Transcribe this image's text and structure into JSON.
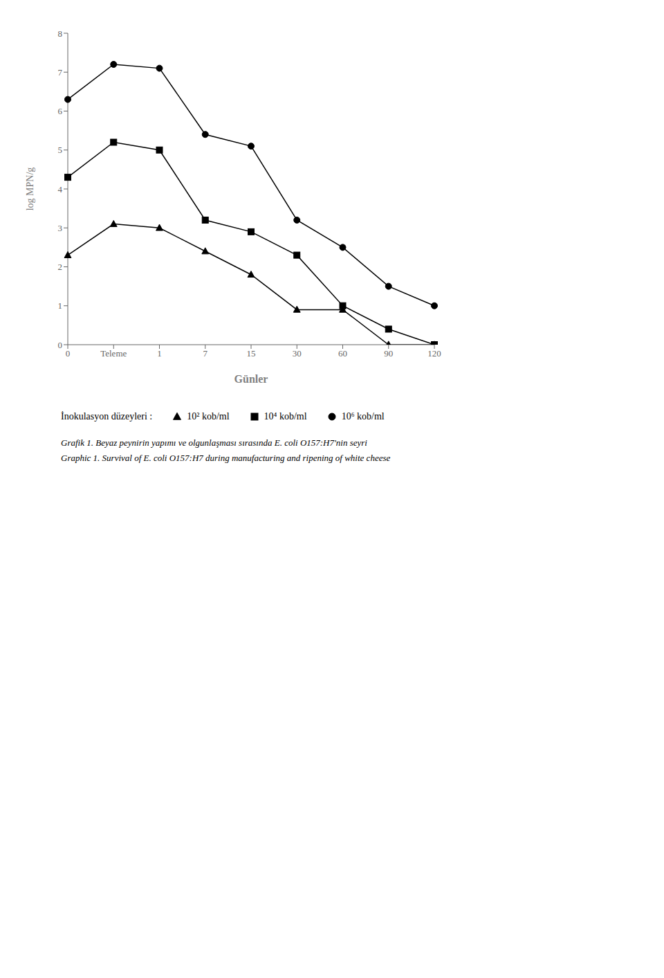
{
  "chart_data": {
    "type": "line",
    "title": "Grafik 1. Beyaz peynirin yapımı ve olgunlaşması sırasında E. coli O157:H7'nin seyri",
    "subtitle": "Graphic 1. Survival of E. coli O157:H7 during manufacturing and ripening of white cheese",
    "categories": [
      "0",
      "Teleme",
      "1",
      "7",
      "15",
      "30",
      "60",
      "90",
      "120"
    ],
    "series": [
      {
        "name": "10⁶ kob/ml",
        "color": "black",
        "marker": "circle",
        "line_style": "solid",
        "values": [
          6.3,
          7.2,
          7.1,
          5.4,
          5.1,
          3.2,
          2.5,
          1.5,
          1.0
        ]
      },
      {
        "name": "10⁴ kob/ml",
        "color": "black",
        "marker": "square",
        "line_style": "solid",
        "values": [
          4.3,
          5.2,
          5.0,
          3.2,
          2.9,
          2.3,
          1.0,
          0.4,
          0.0
        ]
      },
      {
        "name": "10² kob/ml",
        "color": "black",
        "marker": "triangle",
        "line_style": "solid",
        "values": [
          2.3,
          3.1,
          3.0,
          2.4,
          1.8,
          0.9,
          0.9,
          0.0,
          0.0
        ]
      }
    ],
    "x_label": "Günler",
    "y_label": "log MPN/g",
    "ylim": [
      0,
      8
    ],
    "yticks": [
      0,
      1,
      2,
      3,
      4,
      5,
      6,
      7,
      8
    ],
    "grid": false,
    "legend": "bottom",
    "legend_title": "İnokulasyon düzeyleri :"
  }
}
